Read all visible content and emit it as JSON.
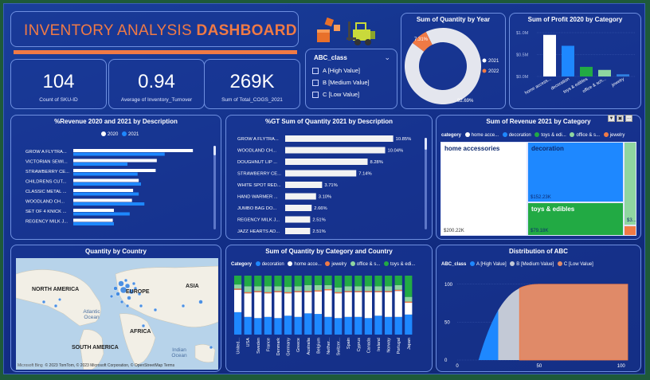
{
  "header": {
    "title_part1": "INVENTORY ANALYSIS ",
    "title_part2": "DASHBOARD"
  },
  "kpis": [
    {
      "value": "104",
      "label": "Count of SKU-ID"
    },
    {
      "value": "0.94",
      "label": "Average of Inventory_Turnover"
    },
    {
      "value": "269K",
      "label": "Sum of Total_COGS_2021"
    }
  ],
  "slicer": {
    "title": "ABC_class",
    "options": [
      "A [High Value]",
      "B [Medium Value]",
      "C [Low Value]"
    ]
  },
  "colors": {
    "accent": "#f07a45",
    "series2021": "#1e88ff",
    "series2020": "#ffffff",
    "decoration": "#1e88ff",
    "home": "#ffffff",
    "jewelry": "#f07a45",
    "office": "#8fd6a0",
    "toys": "#22aa44"
  },
  "icons": [
    "boxes-icon",
    "forklift-icon",
    "chevron-down-icon",
    "filter-icon",
    "expand-icon",
    "more-options-icon",
    "globe-icon"
  ],
  "chart_data": [
    {
      "id": "donut",
      "type": "pie",
      "title": "Sum of Quantity by Year",
      "legend": [
        "2021",
        "2022"
      ],
      "values": [
        92.69,
        7.31
      ],
      "labels": [
        "92.69%",
        "7.31%"
      ]
    },
    {
      "id": "profit",
      "type": "bar",
      "title": "Sum of Profit 2020 by Category",
      "categories": [
        "home access...",
        "decoration",
        "toys & edibles",
        "office & sch...",
        "jewelry"
      ],
      "values": [
        0.95,
        0.7,
        0.22,
        0.15,
        0.05
      ],
      "y_ticks": [
        "$1.0M",
        "$0.5M",
        "$0.0M"
      ],
      "ylim": [
        0,
        1.0
      ]
    },
    {
      "id": "revenue",
      "type": "bar",
      "title": "%Revenue 2020 and 2021 by Description",
      "legend": [
        "2020",
        "2021"
      ],
      "categories": [
        "GROW A FLYTRA...",
        "VICTORIAN SEWI...",
        "STRAWBERRY CE...",
        "CHILDRENS CUT...",
        "CLASSIC METAL ...",
        "WOODLAND CH...",
        "SET OF 4 KNICK ...",
        "REGENCY MILK J..."
      ],
      "series": [
        {
          "name": "2020",
          "values": [
            10.6,
            7.4,
            7.3,
            5.8,
            5.3,
            5.2,
            3.6,
            3.5
          ]
        },
        {
          "name": "2021",
          "values": [
            8.1,
            4.8,
            5.7,
            6.0,
            5.8,
            6.3,
            5.0,
            3.6
          ]
        }
      ],
      "xlim": [
        0,
        12
      ]
    },
    {
      "id": "gt",
      "type": "bar",
      "title": "%GT Sum of Quantity 2021 by Description",
      "categories": [
        "GROW A FLYTRA...",
        "WOODLAND CH...",
        "DOUGHNUT LIP ...",
        "STRAWBERRY CE...",
        "WHITE SPOT RED...",
        "HAND WARMER ...",
        "JUMBO BAG DO...",
        "REGENCY MILK J...",
        "JAZZ HEARTS AD..."
      ],
      "values": [
        10.85,
        10.04,
        8.28,
        7.14,
        3.71,
        3.1,
        2.66,
        2.51,
        2.51
      ],
      "value_labels": [
        "10.85%",
        "10.04%",
        "8.28%",
        "7.14%",
        "3.71%",
        "3.10%",
        "2.66%",
        "2.51%",
        "2.51%"
      ],
      "xlim": [
        0,
        12
      ]
    },
    {
      "id": "treemap",
      "type": "heatmap",
      "title": "Sum of Revenue 2021 by Category",
      "legend_title": "category",
      "legend": [
        "home acce...",
        "decoration",
        "toys & edi...",
        "office & s...",
        "jewelry"
      ],
      "cells": [
        {
          "name": "home accessories",
          "value": 200.22,
          "label": "$200.22K"
        },
        {
          "name": "decoration",
          "value": 152.23,
          "label": "$152.23K"
        },
        {
          "name": "toys & edibles",
          "value": 79.18,
          "label": "$79.18K"
        },
        {
          "name": "office",
          "value": 40,
          "label": "$3..."
        },
        {
          "name": "jewelry",
          "value": 8,
          "label": ""
        }
      ]
    },
    {
      "id": "stacked",
      "type": "bar",
      "title": "Sum of Quantity by Category and Country",
      "legend_title": "Category",
      "legend": [
        "decoration",
        "home acce...",
        "jewelry",
        "office & s...",
        "toys & edi..."
      ],
      "categories": [
        "United...",
        "USA",
        "Sweden",
        "France",
        "Denmark",
        "Germany",
        "Greece",
        "Australia",
        "Belgium",
        "Nether...",
        "Switzer...",
        "Spain",
        "Cyprus",
        "Canada",
        "Ireland",
        "Norway",
        "Portugal",
        "Japan"
      ],
      "series": [
        {
          "name": "decoration",
          "values": [
            38,
            30,
            28,
            30,
            28,
            32,
            30,
            36,
            35,
            30,
            28,
            30,
            30,
            28,
            32,
            30,
            30,
            34
          ]
        },
        {
          "name": "home acce...",
          "values": [
            38,
            40,
            44,
            40,
            44,
            38,
            42,
            36,
            38,
            45,
            42,
            42,
            42,
            44,
            40,
            42,
            44,
            20
          ]
        },
        {
          "name": "jewelry",
          "values": [
            2,
            2,
            2,
            2,
            2,
            2,
            2,
            2,
            2,
            2,
            2,
            2,
            2,
            2,
            2,
            2,
            2,
            2
          ]
        },
        {
          "name": "office & s...",
          "values": [
            7,
            10,
            8,
            10,
            8,
            9,
            8,
            10,
            9,
            7,
            8,
            8,
            8,
            8,
            8,
            8,
            8,
            8
          ]
        },
        {
          "name": "toys & edi...",
          "values": [
            15,
            18,
            18,
            18,
            18,
            19,
            18,
            16,
            16,
            16,
            20,
            18,
            18,
            18,
            18,
            18,
            16,
            36
          ]
        }
      ]
    },
    {
      "id": "abc",
      "type": "area",
      "title": "Distribution of ABC",
      "legend_title": "ABC_class",
      "legend": [
        "A [High Value]",
        "B [Medium Value]",
        "C [Low Value]"
      ],
      "x_ticks": [
        "0",
        "50",
        "100"
      ],
      "y_ticks": [
        "100",
        "50",
        "0"
      ],
      "xlim": [
        0,
        104
      ],
      "ylim": [
        0,
        105
      ],
      "segments": [
        {
          "name": "A [High Value]",
          "x_start": 13,
          "x_end": 25
        },
        {
          "name": "B [Medium Value]",
          "x_start": 25,
          "x_end": 38
        },
        {
          "name": "C [Low Value]",
          "x_start": 38,
          "x_end": 104
        }
      ]
    }
  ],
  "map": {
    "title": "Quantity by Country",
    "labels": [
      "NORTH AMERICA",
      "EUROPE",
      "ASIA",
      "AFRICA",
      "SOUTH AMERICA"
    ],
    "oceans": [
      "Atlantic Ocean",
      "Indian Ocean"
    ],
    "attribution": "© 2023 TomTom, © 2023 Microsoft Corporation, © OpenStreetMap  Terms",
    "bing": "Microsoft Bing"
  }
}
